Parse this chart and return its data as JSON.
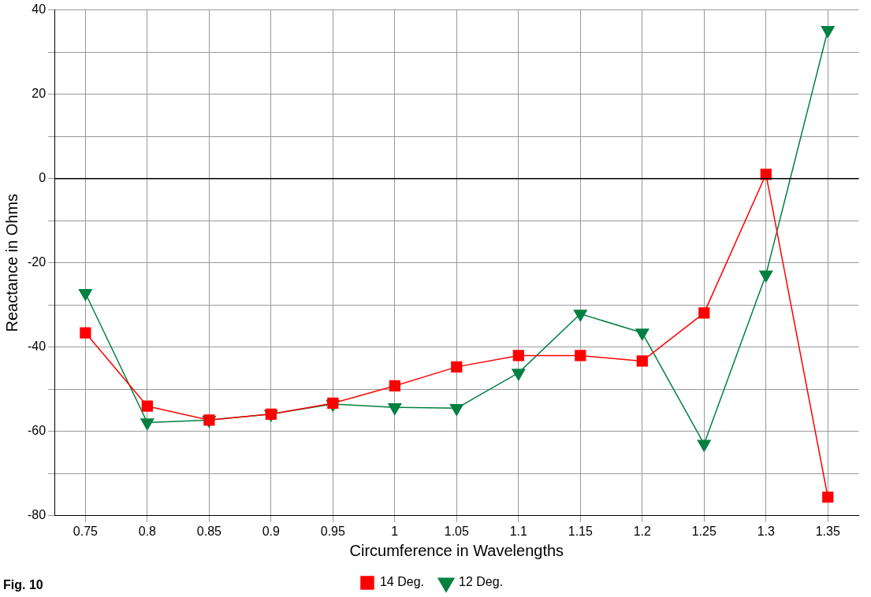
{
  "chart_data": {
    "type": "line",
    "xlabel": "Circumference in Wavelengths",
    "ylabel": "Reactance in Ohms",
    "categories": [
      "0.75",
      "0.8",
      "0.85",
      "0.9",
      "0.95",
      "1",
      "1.05",
      "1.1",
      "1.15",
      "1.2",
      "1.25",
      "1.3",
      "1.35"
    ],
    "series": [
      {
        "name": "14 Deg.",
        "color": "#ff0000",
        "marker": "square",
        "values": [
          -36.6,
          -54,
          -57.3,
          -55.9,
          -53.3,
          -49.2,
          -44.7,
          -42,
          -42,
          -43.3,
          -31.9,
          1,
          -75.6
        ]
      },
      {
        "name": "12 Deg.",
        "color": "#008040",
        "marker": "triangle",
        "values": [
          -27.2,
          -57.9,
          -57.3,
          -55.9,
          -53.5,
          -54.3,
          -54.5,
          -46.1,
          -32.1,
          -36.6,
          -63,
          -22.8,
          35.2
        ]
      }
    ],
    "ylim": [
      -80,
      40
    ],
    "yticks": [
      -80,
      {
        "value": -70,
        "label": null
      },
      -60,
      {
        "value": -50,
        "label": null
      },
      -40,
      {
        "value": -30,
        "label": null
      },
      -20,
      {
        "value": -10,
        "label": null
      },
      0,
      {
        "value": 10,
        "label": null
      },
      20,
      {
        "value": 30,
        "label": null
      },
      40
    ],
    "ref_lines": [
      {
        "axis": "y",
        "value": 0,
        "color": "#000000"
      }
    ],
    "grid": true,
    "legend": "bottom",
    "annotations": [
      "Fig. 10"
    ]
  }
}
